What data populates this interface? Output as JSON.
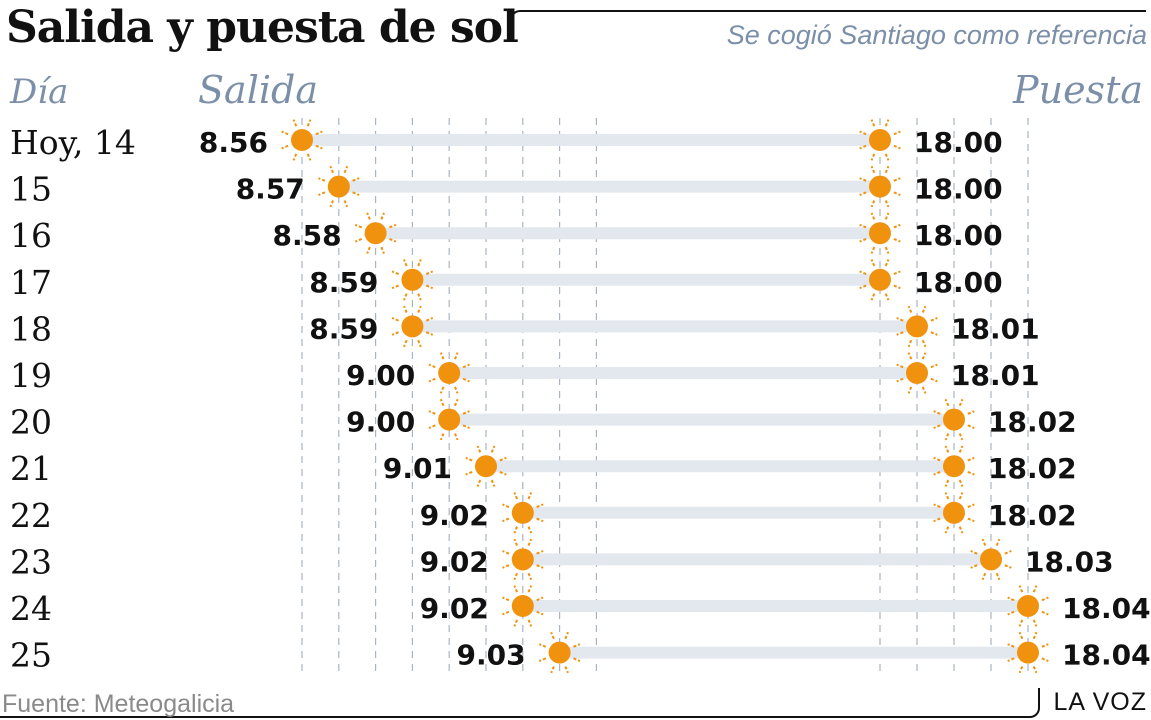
{
  "header": {
    "title": "Salida y puesta de sol",
    "subtitle": "Se cogió Santiago como referencia"
  },
  "footer": {
    "source": "Fuente: Meteogalicia",
    "brand": "LA VOZ"
  },
  "colors": {
    "sun": "#F0920E",
    "bar": "#E3E8EF",
    "header_text": "#7B8FA8",
    "text": "#111111",
    "guide": "#A9B4C2"
  },
  "icons": {
    "sunrise": "sun-icon",
    "sunset": "sun-icon"
  },
  "chart_data": {
    "type": "table",
    "columns": [
      "Día",
      "Salida",
      "Puesta"
    ],
    "rows": [
      {
        "day": "Hoy, 14",
        "sunrise": "8.56",
        "sunset": "18.00"
      },
      {
        "day": "15",
        "sunrise": "8.57",
        "sunset": "18.00"
      },
      {
        "day": "16",
        "sunrise": "8.58",
        "sunset": "18.00"
      },
      {
        "day": "17",
        "sunrise": "8.59",
        "sunset": "18.00"
      },
      {
        "day": "18",
        "sunrise": "8.59",
        "sunset": "18.01"
      },
      {
        "day": "19",
        "sunrise": "9.00",
        "sunset": "18.01"
      },
      {
        "day": "20",
        "sunrise": "9.00",
        "sunset": "18.02"
      },
      {
        "day": "21",
        "sunrise": "9.01",
        "sunset": "18.02"
      },
      {
        "day": "22",
        "sunrise": "9.02",
        "sunset": "18.02"
      },
      {
        "day": "23",
        "sunrise": "9.02",
        "sunset": "18.03"
      },
      {
        "day": "24",
        "sunrise": "9.02",
        "sunset": "18.04"
      },
      {
        "day": "25",
        "sunrise": "9.03",
        "sunset": "18.04"
      }
    ]
  }
}
